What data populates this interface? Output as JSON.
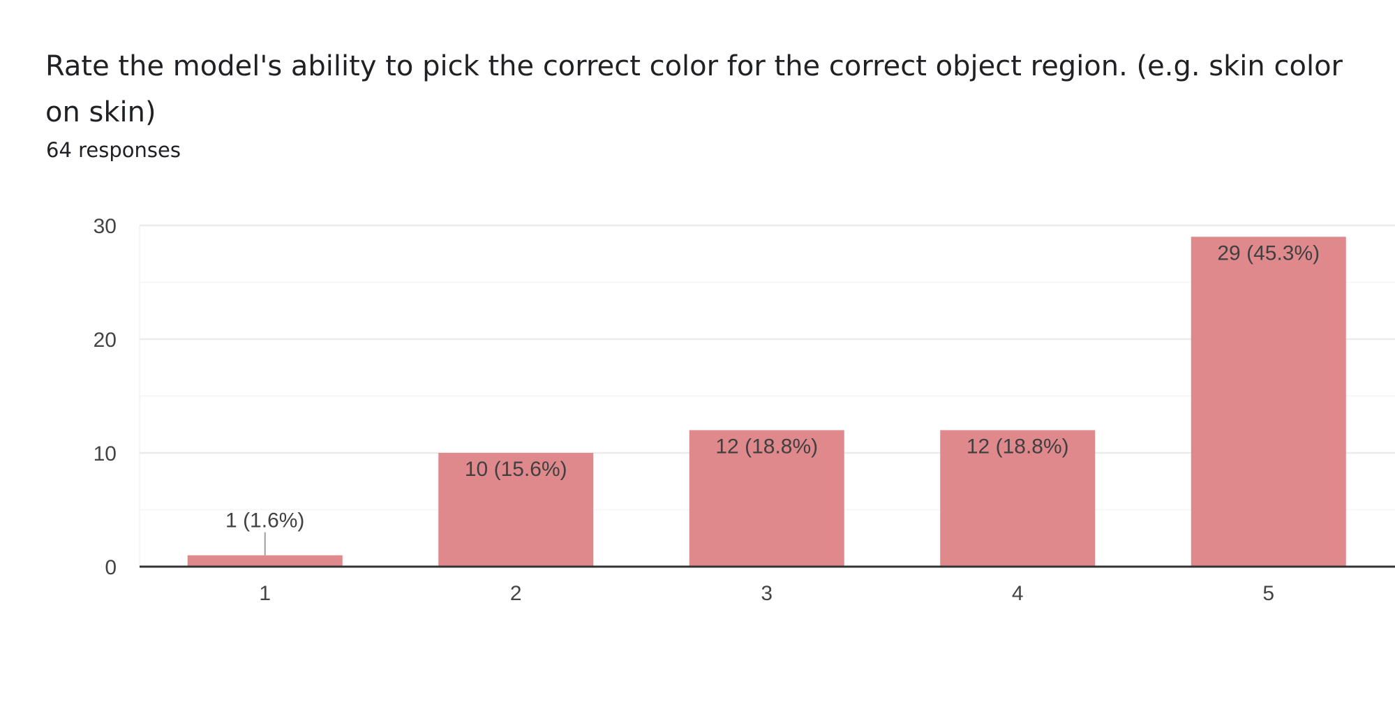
{
  "question": {
    "title": "Rate the model's ability to pick the correct color for the correct object region. (e.g. skin color on skin)",
    "responses": "64 responses"
  },
  "colors": {
    "bar": "#e0898d",
    "grid": "#ebebeb",
    "minor_grid": "#f5f5f5",
    "axis": "#333333",
    "leader": "#9e9e9e"
  },
  "chart_data": {
    "type": "bar",
    "title": "Rate the model's ability to pick the correct color for the correct object region. (e.g. skin color on skin)",
    "xlabel": "",
    "ylabel": "",
    "categories": [
      "1",
      "2",
      "3",
      "4",
      "5"
    ],
    "values": [
      1,
      10,
      12,
      12,
      29
    ],
    "data_labels": [
      "1 (1.6%)",
      "10 (15.6%)",
      "12 (18.8%)",
      "12 (18.8%)",
      "29 (45.3%)"
    ],
    "ylim": [
      0,
      30
    ],
    "yticks": [
      0,
      10,
      20,
      30
    ],
    "grid": true
  }
}
